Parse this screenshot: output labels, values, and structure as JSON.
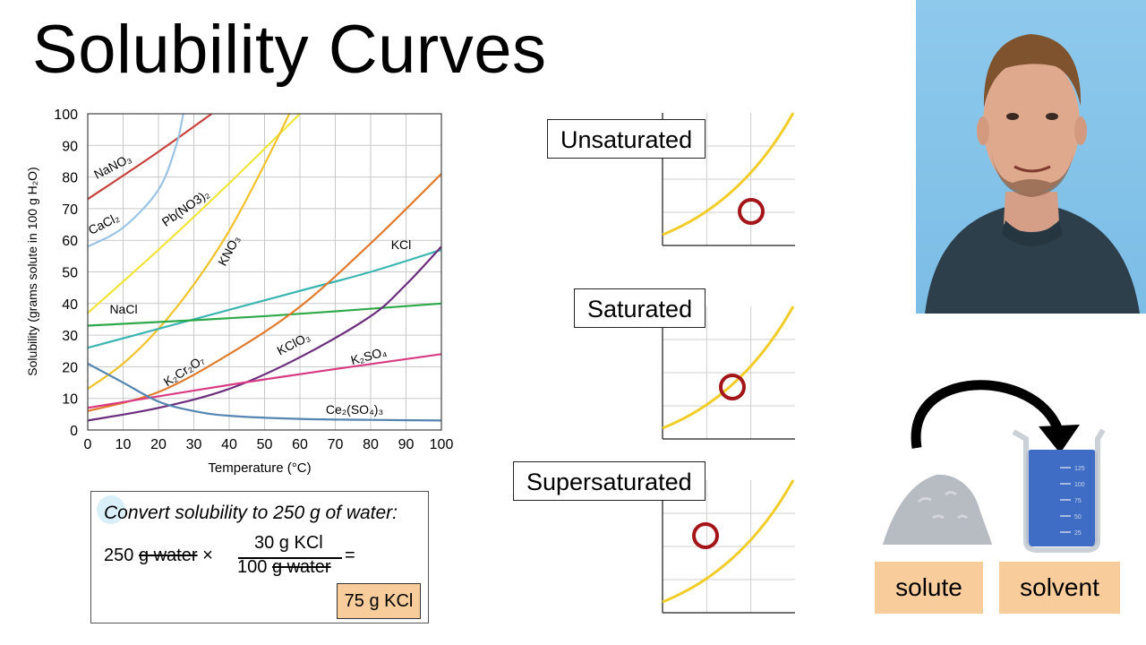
{
  "title": "Solubility Curves",
  "chart_data": {
    "type": "line",
    "title": "",
    "xlabel": "Temperature (°C)",
    "ylabel": "Solubility (grams solute in 100 g H₂O)",
    "xlim": [
      0,
      100
    ],
    "ylim": [
      0,
      100
    ],
    "xticks": [
      "0",
      "10",
      "20",
      "30",
      "40",
      "50",
      "60",
      "70",
      "80",
      "90",
      "100"
    ],
    "yticks": [
      "0",
      "10",
      "20",
      "30",
      "40",
      "50",
      "60",
      "70",
      "80",
      "90",
      "100"
    ],
    "grid": true,
    "legend": "none (series labeled directly on curves)",
    "series": [
      {
        "name": "NaNO₃",
        "color": "#c8423b",
        "label_rotation": -27,
        "x": [
          0,
          20,
          40,
          50
        ],
        "y": [
          73,
          88,
          104,
          112
        ]
      },
      {
        "name": "CaCl₂",
        "color": "#9cc4e3",
        "label_rotation": -27,
        "x": [
          0,
          10,
          20,
          25,
          27
        ],
        "y": [
          58,
          64,
          76,
          90,
          100
        ]
      },
      {
        "name": "Pb(NO3)₂",
        "color": "#f1e43a",
        "label_rotation": -35,
        "x": [
          0,
          20,
          40,
          60
        ],
        "y": [
          37,
          57,
          78,
          100
        ]
      },
      {
        "name": "KNO₃",
        "color": "#f1c22b",
        "label_rotation": -62,
        "x": [
          0,
          10,
          20,
          30,
          40,
          50,
          60
        ],
        "y": [
          13,
          21,
          32,
          46,
          63,
          84,
          107
        ]
      },
      {
        "name": "KCl",
        "color": "#3bb5b1",
        "label_rotation": 0,
        "x": [
          0,
          20,
          40,
          60,
          80,
          100
        ],
        "y": [
          26,
          32,
          38,
          44,
          50,
          57
        ]
      },
      {
        "name": "NaCl",
        "color": "#2ea94a",
        "label_rotation": 0,
        "x": [
          0,
          50,
          100
        ],
        "y": [
          33,
          36,
          40
        ]
      },
      {
        "name": "K₂Cr₂O₇",
        "color": "#e27b2e",
        "label_rotation": -33,
        "x": [
          0,
          20,
          40,
          60,
          80,
          100
        ],
        "y": [
          6,
          12,
          24,
          39,
          59,
          81
        ]
      },
      {
        "name": "KClO₃",
        "color": "#6b2f7d",
        "label_rotation": -27,
        "x": [
          0,
          20,
          40,
          60,
          80,
          90,
          100
        ],
        "y": [
          3,
          7,
          13,
          23,
          36,
          46,
          58
        ]
      },
      {
        "name": "K₂SO₄",
        "color": "#d83b83",
        "label_rotation": -15,
        "x": [
          0,
          50,
          100
        ],
        "y": [
          7,
          16,
          24
        ]
      },
      {
        "name": "Ce₂(SO₄)₃",
        "color": "#5585b1",
        "label_rotation": 0,
        "x": [
          0,
          10,
          20,
          30,
          40,
          60,
          80,
          100
        ],
        "y": [
          21,
          15,
          9,
          6,
          4.5,
          3.5,
          3.2,
          3
        ]
      }
    ]
  },
  "saturation": {
    "curve_color": "#f2cd2a",
    "marker_color": "#a31518",
    "panels": [
      {
        "label": "Unsaturated",
        "marker": "below curve"
      },
      {
        "label": "Saturated",
        "marker": "on curve"
      },
      {
        "label": "Supersaturated",
        "marker": "above curve"
      }
    ]
  },
  "calculation": {
    "heading": "Convert solubility to 250 g of water:",
    "factor_left_value": "250",
    "factor_left_unit": "g water",
    "times": "×",
    "numerator": "30 g KCl",
    "denominator_value": "100",
    "denominator_unit": "g water",
    "equals": "=",
    "result": "75 g KCl"
  },
  "dissolving": {
    "solute_label": "solute",
    "solvent_label": "solvent",
    "beaker_marks": [
      "125",
      "100",
      "75",
      "50",
      "25"
    ],
    "liquid_color": "#3f6cc4",
    "solute_color": "#b7bcc2",
    "arrow": "curved-arrow"
  },
  "presenter": {
    "description_icon": "presenter-video"
  }
}
